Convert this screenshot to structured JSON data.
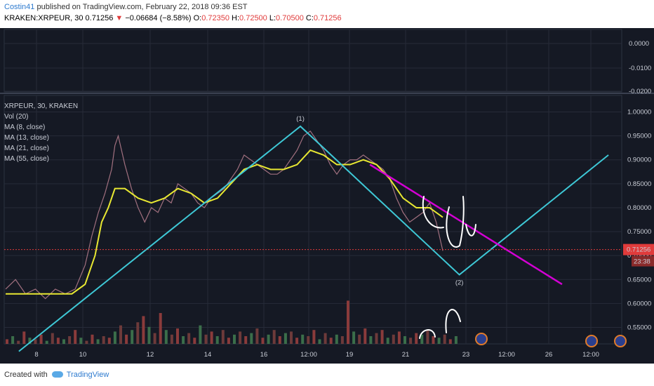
{
  "header": {
    "username": "Costin41",
    "published_text": "published on TradingView.com, February 22, 2018 09:36 EST",
    "symbol_line": "KRAKEN:XRPEUR, 30",
    "last": "0.71256",
    "change": "−0.06684 (−8.58%)",
    "o_label": "O:",
    "o": "0.72350",
    "h_label": "H:",
    "h": "0.72500",
    "l_label": "L:",
    "l": "0.70500",
    "c_label": "C:",
    "c": "0.71256"
  },
  "legend": {
    "title": "XRPEUR, 30, KRAKEN",
    "items": [
      "Vol (20)",
      "MA (8, close)",
      "MA (13, close)",
      "MA (21, close)",
      "MA (55, close)"
    ]
  },
  "footer": {
    "created_with": "Created with",
    "brand": "TradingView"
  },
  "colors": {
    "bg": "#151924",
    "grid": "#262b38",
    "cyan": "#3ec8d6",
    "magenta": "#d400d4",
    "ma_yellow": "#e8e832",
    "price_red": "#e03b3b"
  },
  "chart_data": {
    "type": "line",
    "symbol": "KRAKEN:XRPEUR",
    "timeframe": "30",
    "x_ticks": [
      "8",
      "10",
      "12",
      "14",
      "16",
      "12:00",
      "19",
      "21",
      "23",
      "12:00",
      "26",
      "12:00"
    ],
    "price_axis": {
      "ticks": [
        "1.00000",
        "0.95000",
        "0.90000",
        "0.85000",
        "0.80000",
        "0.75000",
        "0.70000",
        "0.65000",
        "0.60000",
        "0.55000"
      ],
      "ylim": [
        0.5,
        1.02
      ]
    },
    "indicator_axis": {
      "ticks": [
        "0.0000",
        "-0.0100",
        "-0.0200"
      ]
    },
    "current_price": {
      "value": 0.71256,
      "label": "0.71256",
      "countdown": "23:38"
    },
    "price_path": [
      [
        0,
        0.63
      ],
      [
        3,
        0.65
      ],
      [
        6,
        0.62
      ],
      [
        9,
        0.63
      ],
      [
        12,
        0.61
      ],
      [
        15,
        0.63
      ],
      [
        18,
        0.62
      ],
      [
        21,
        0.63
      ],
      [
        24,
        0.68
      ],
      [
        26,
        0.74
      ],
      [
        28,
        0.79
      ],
      [
        30,
        0.83
      ],
      [
        32,
        0.88
      ],
      [
        33,
        0.93
      ],
      [
        34,
        0.95
      ],
      [
        35,
        0.92
      ],
      [
        36,
        0.89
      ],
      [
        38,
        0.84
      ],
      [
        40,
        0.8
      ],
      [
        42,
        0.77
      ],
      [
        44,
        0.8
      ],
      [
        46,
        0.79
      ],
      [
        48,
        0.82
      ],
      [
        50,
        0.81
      ],
      [
        52,
        0.85
      ],
      [
        54,
        0.84
      ],
      [
        56,
        0.83
      ],
      [
        58,
        0.81
      ],
      [
        60,
        0.8
      ],
      [
        62,
        0.82
      ],
      [
        64,
        0.83
      ],
      [
        66,
        0.84
      ],
      [
        68,
        0.86
      ],
      [
        70,
        0.88
      ],
      [
        72,
        0.91
      ],
      [
        74,
        0.9
      ],
      [
        76,
        0.89
      ],
      [
        78,
        0.88
      ],
      [
        80,
        0.87
      ],
      [
        82,
        0.87
      ],
      [
        84,
        0.88
      ],
      [
        86,
        0.9
      ],
      [
        88,
        0.92
      ],
      [
        90,
        0.95
      ],
      [
        92,
        0.96
      ],
      [
        94,
        0.94
      ],
      [
        96,
        0.92
      ],
      [
        98,
        0.89
      ],
      [
        100,
        0.87
      ],
      [
        102,
        0.89
      ],
      [
        104,
        0.9
      ],
      [
        106,
        0.9
      ],
      [
        108,
        0.91
      ],
      [
        110,
        0.9
      ],
      [
        112,
        0.89
      ],
      [
        114,
        0.88
      ],
      [
        116,
        0.86
      ],
      [
        118,
        0.82
      ],
      [
        120,
        0.79
      ],
      [
        122,
        0.77
      ],
      [
        124,
        0.78
      ],
      [
        126,
        0.79
      ],
      [
        128,
        0.81
      ],
      [
        130,
        0.77
      ],
      [
        131,
        0.74
      ],
      [
        132,
        0.71
      ]
    ],
    "ma_yellow": [
      [
        0,
        0.62
      ],
      [
        10,
        0.62
      ],
      [
        20,
        0.62
      ],
      [
        24,
        0.64
      ],
      [
        27,
        0.7
      ],
      [
        29,
        0.77
      ],
      [
        31,
        0.8
      ],
      [
        33,
        0.84
      ],
      [
        36,
        0.84
      ],
      [
        40,
        0.82
      ],
      [
        44,
        0.81
      ],
      [
        48,
        0.82
      ],
      [
        52,
        0.84
      ],
      [
        56,
        0.83
      ],
      [
        60,
        0.81
      ],
      [
        64,
        0.82
      ],
      [
        68,
        0.85
      ],
      [
        72,
        0.88
      ],
      [
        76,
        0.89
      ],
      [
        80,
        0.88
      ],
      [
        84,
        0.88
      ],
      [
        88,
        0.89
      ],
      [
        92,
        0.92
      ],
      [
        96,
        0.91
      ],
      [
        100,
        0.89
      ],
      [
        104,
        0.89
      ],
      [
        108,
        0.9
      ],
      [
        112,
        0.89
      ],
      [
        116,
        0.86
      ],
      [
        120,
        0.82
      ],
      [
        124,
        0.8
      ],
      [
        128,
        0.8
      ],
      [
        132,
        0.78
      ]
    ],
    "annotations": [
      {
        "type": "wave-label",
        "text": "(1)",
        "x": 89,
        "y": 0.97
      },
      {
        "type": "wave-label",
        "text": "(2)",
        "x": 137,
        "y": 0.66
      },
      {
        "type": "trendline",
        "color": "cyan",
        "points": [
          [
            4,
            0.5
          ],
          [
            89,
            0.97
          ],
          [
            137,
            0.66
          ],
          [
            182,
            0.91
          ]
        ]
      },
      {
        "type": "trendline",
        "color": "magenta",
        "points": [
          [
            110,
            0.89
          ],
          [
            168,
            0.64
          ]
        ]
      }
    ],
    "volume": [
      3,
      5,
      2,
      8,
      4,
      3,
      6,
      2,
      7,
      4,
      3,
      5,
      9,
      4,
      2,
      6,
      3,
      5,
      4,
      8,
      12,
      6,
      9,
      14,
      18,
      11,
      7,
      20,
      9,
      6,
      10,
      5,
      7,
      4,
      12,
      6,
      8,
      5,
      9,
      4,
      6,
      8,
      5,
      7,
      10,
      4,
      6,
      9,
      5,
      7,
      8,
      4,
      6,
      5,
      9,
      3,
      7,
      4,
      6,
      5,
      28,
      8,
      6,
      10,
      5,
      7,
      9,
      4,
      6,
      8,
      5,
      4,
      7,
      6,
      9,
      5,
      4,
      6,
      3,
      5
    ],
    "grid": true
  }
}
